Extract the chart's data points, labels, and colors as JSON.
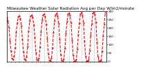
{
  "title": "Milwaukee Weather Solar Radiation Avg per Day W/m2/minute",
  "title_fontsize": 4.2,
  "line_color": "#FF0000",
  "line_style": "--",
  "line_width": 0.8,
  "marker": ".",
  "marker_size": 1.2,
  "background_color": "#ffffff",
  "grid_color": "#888888",
  "grid_style": ":",
  "ylim": [
    0,
    300
  ],
  "yticks": [
    0,
    50,
    100,
    150,
    200,
    250,
    300
  ],
  "ylabel_fontsize": 3.0,
  "xlabel_fontsize": 2.8,
  "yaxis_right": true,
  "values": [
    260,
    240,
    200,
    120,
    60,
    20,
    10,
    30,
    80,
    170,
    230,
    265,
    270,
    255,
    210,
    130,
    55,
    15,
    8,
    25,
    90,
    180,
    240,
    270,
    275,
    260,
    215,
    140,
    50,
    10,
    5,
    20,
    85,
    175,
    245,
    275,
    280,
    265,
    220,
    135,
    45,
    8,
    3,
    18,
    80,
    170,
    240,
    278,
    285,
    270,
    225,
    130,
    40,
    5,
    2,
    15,
    75,
    165,
    235,
    280,
    288,
    272,
    228,
    125,
    35,
    4,
    2,
    12,
    70,
    160,
    230,
    282,
    290,
    275,
    230,
    120,
    30,
    3,
    1,
    10,
    65,
    155,
    225,
    285,
    292,
    278,
    232,
    115,
    25,
    2,
    1,
    8,
    60,
    150,
    220,
    290
  ],
  "n_grid_lines": 9,
  "xlim_start": 0,
  "xlim_end": 96
}
